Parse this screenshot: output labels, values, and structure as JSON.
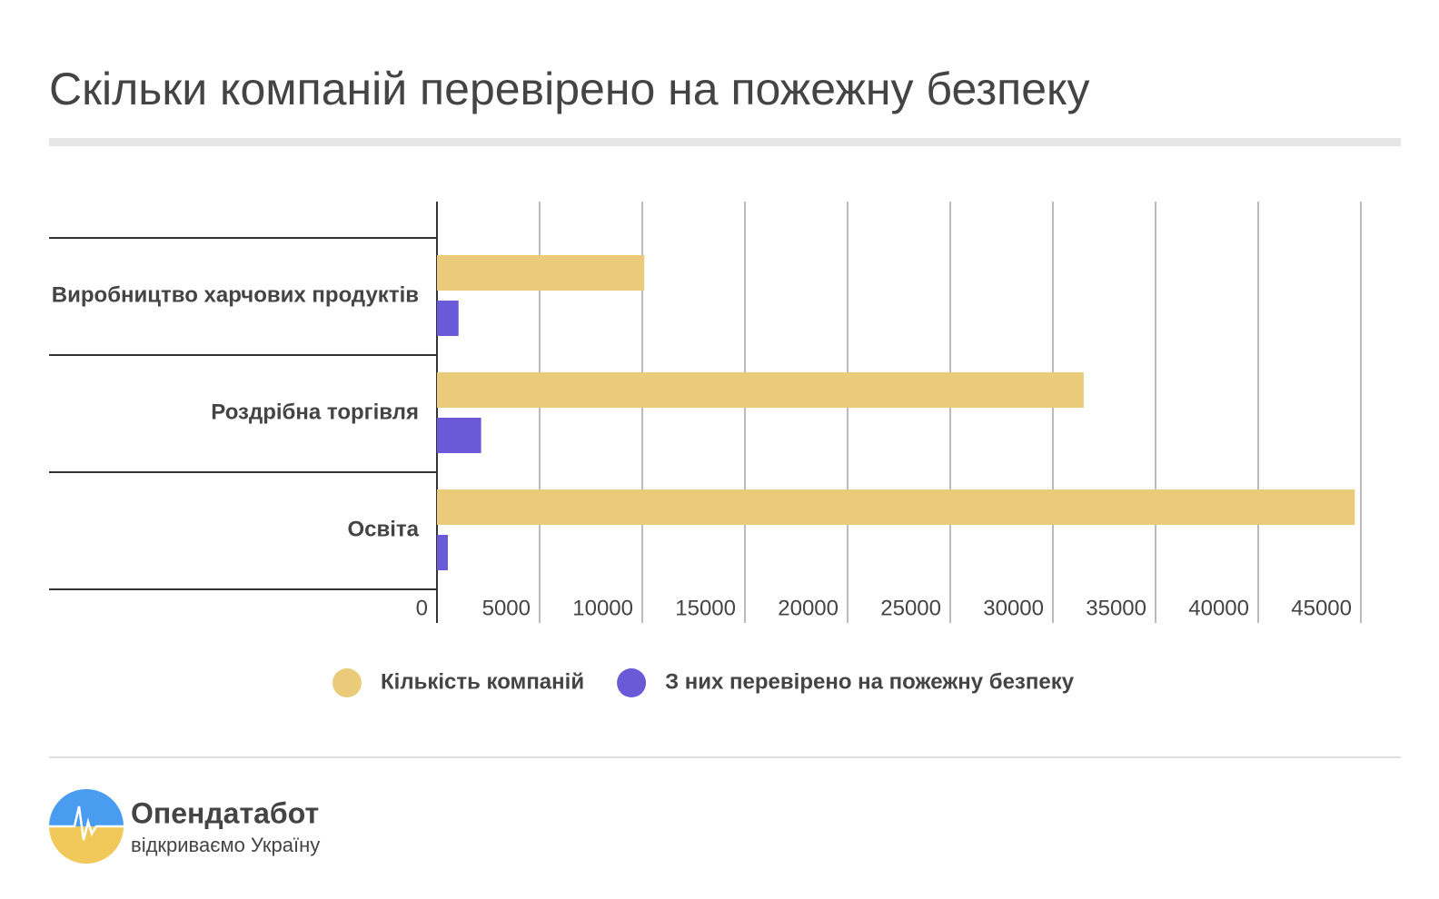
{
  "chart_data": {
    "type": "barh",
    "title": "Скільки компаній перевірено на пожежну безпеку",
    "categories": [
      "Виробництво харчових продуктів",
      "Роздрібна торгівля",
      "Освіта"
    ],
    "series": [
      {
        "name": "Кількість компаній",
        "color": "#e9cb7a",
        "values": [
          10100,
          31500,
          44700
        ]
      },
      {
        "name": "З них перевірено на пожежну безпеку",
        "color": "#6a5ad8",
        "values": [
          1050,
          2150,
          530
        ]
      }
    ],
    "xlim": [
      0,
      45000
    ],
    "xticks": [
      0,
      5000,
      10000,
      15000,
      20000,
      25000,
      30000,
      35000,
      40000,
      45000
    ],
    "grid": true,
    "legend": "bottom"
  },
  "footer": {
    "brand": "Опендатабот",
    "tagline": "відкриваємо Україну"
  }
}
